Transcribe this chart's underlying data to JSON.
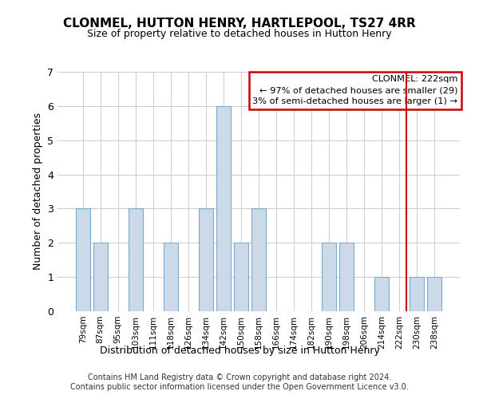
{
  "title": "CLONMEL, HUTTON HENRY, HARTLEPOOL, TS27 4RR",
  "subtitle": "Size of property relative to detached houses in Hutton Henry",
  "xlabel": "Distribution of detached houses by size in Hutton Henry",
  "ylabel": "Number of detached properties",
  "bar_labels": [
    "79sqm",
    "87sqm",
    "95sqm",
    "103sqm",
    "111sqm",
    "118sqm",
    "126sqm",
    "134sqm",
    "142sqm",
    "150sqm",
    "158sqm",
    "166sqm",
    "174sqm",
    "182sqm",
    "190sqm",
    "198sqm",
    "206sqm",
    "214sqm",
    "222sqm",
    "230sqm",
    "238sqm"
  ],
  "bar_values": [
    3,
    2,
    0,
    3,
    0,
    2,
    0,
    3,
    6,
    2,
    3,
    0,
    0,
    0,
    2,
    2,
    0,
    1,
    0,
    1,
    1
  ],
  "bar_color": "#ccd9e8",
  "bar_edge_color": "#7aabcd",
  "ylim": [
    0,
    7
  ],
  "yticks": [
    0,
    1,
    2,
    3,
    4,
    5,
    6,
    7
  ],
  "clonmel_line_idx": 18,
  "annotation_title": "CLONMEL: 222sqm",
  "annotation_line1": "← 97% of detached houses are smaller (29)",
  "annotation_line2": "3% of semi-detached houses are larger (1) →",
  "annotation_box_color": "#ffffff",
  "annotation_box_edge": "#cc0000",
  "footer1": "Contains HM Land Registry data © Crown copyright and database right 2024.",
  "footer2": "Contains public sector information licensed under the Open Government Licence v3.0."
}
